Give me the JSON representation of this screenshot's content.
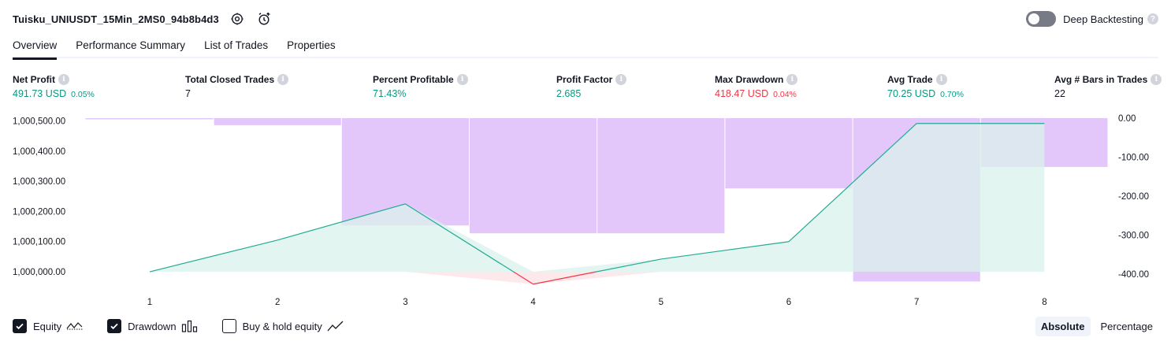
{
  "header": {
    "strategy_name": "Tuisku_UNIUSDT_15Min_2MS0_94b8b4d3",
    "icons": [
      "settings-icon",
      "add-alert-icon"
    ],
    "deep_backtesting_label": "Deep Backtesting",
    "deep_backtesting_enabled": false
  },
  "tabs": [
    {
      "label": "Overview",
      "active": true
    },
    {
      "label": "Performance Summary",
      "active": false
    },
    {
      "label": "List of Trades",
      "active": false
    },
    {
      "label": "Properties",
      "active": false
    }
  ],
  "metrics": {
    "net_profit": {
      "label": "Net Profit",
      "value": "491.73 USD",
      "sub": "0.05%"
    },
    "total_closed_trades": {
      "label": "Total Closed Trades",
      "value": "7"
    },
    "percent_profitable": {
      "label": "Percent Profitable",
      "value": "71.43%"
    },
    "profit_factor": {
      "label": "Profit Factor",
      "value": "2.685"
    },
    "max_drawdown": {
      "label": "Max Drawdown",
      "value": "418.47 USD",
      "sub": "0.04%"
    },
    "avg_trade": {
      "label": "Avg Trade",
      "value": "70.25 USD",
      "sub": "0.70%"
    },
    "avg_bars": {
      "label": "Avg # Bars in Trades",
      "value": "22"
    }
  },
  "chart_data": {
    "type": "line",
    "x": [
      1,
      2,
      3,
      4,
      5,
      6,
      7,
      8
    ],
    "equity": [
      1000000,
      1000105,
      1000225,
      999959,
      1000042,
      1000100,
      1000491.73,
      1000491.73
    ],
    "equity_baseline": 1000000,
    "drawdown": [
      -3,
      -18,
      -275,
      -295,
      -295,
      -180,
      -418.47,
      -125
    ],
    "left_axis": {
      "ticks": [
        "1,000,500.00",
        "1,000,400.00",
        "1,000,300.00",
        "1,000,200.00",
        "1,000,100.00",
        "1,000,000.00"
      ],
      "ylim": [
        999940,
        1000525
      ]
    },
    "right_axis": {
      "ticks": [
        "0.00",
        "-100.00",
        "-200.00",
        "-300.00",
        "-400.00"
      ],
      "ylim": [
        -440,
        0
      ]
    },
    "colors": {
      "equity_line": "#22ab94",
      "equity_fill": "#d9f2ec",
      "loss_line": "#f23645",
      "loss_fill": "#fde7e9",
      "drawdown_fill": "#e1c4fb"
    },
    "grid": false
  },
  "legend": {
    "equity": {
      "label": "Equity",
      "checked": true,
      "icon": "equity-line-icon"
    },
    "drawdown": {
      "label": "Drawdown",
      "checked": true,
      "icon": "drawdown-bars-icon"
    },
    "buy_hold": {
      "label": "Buy & hold equity",
      "checked": false,
      "icon": "buy-hold-line-icon"
    }
  },
  "mode": {
    "absolute": "Absolute",
    "percentage": "Percentage",
    "selected": "absolute"
  }
}
